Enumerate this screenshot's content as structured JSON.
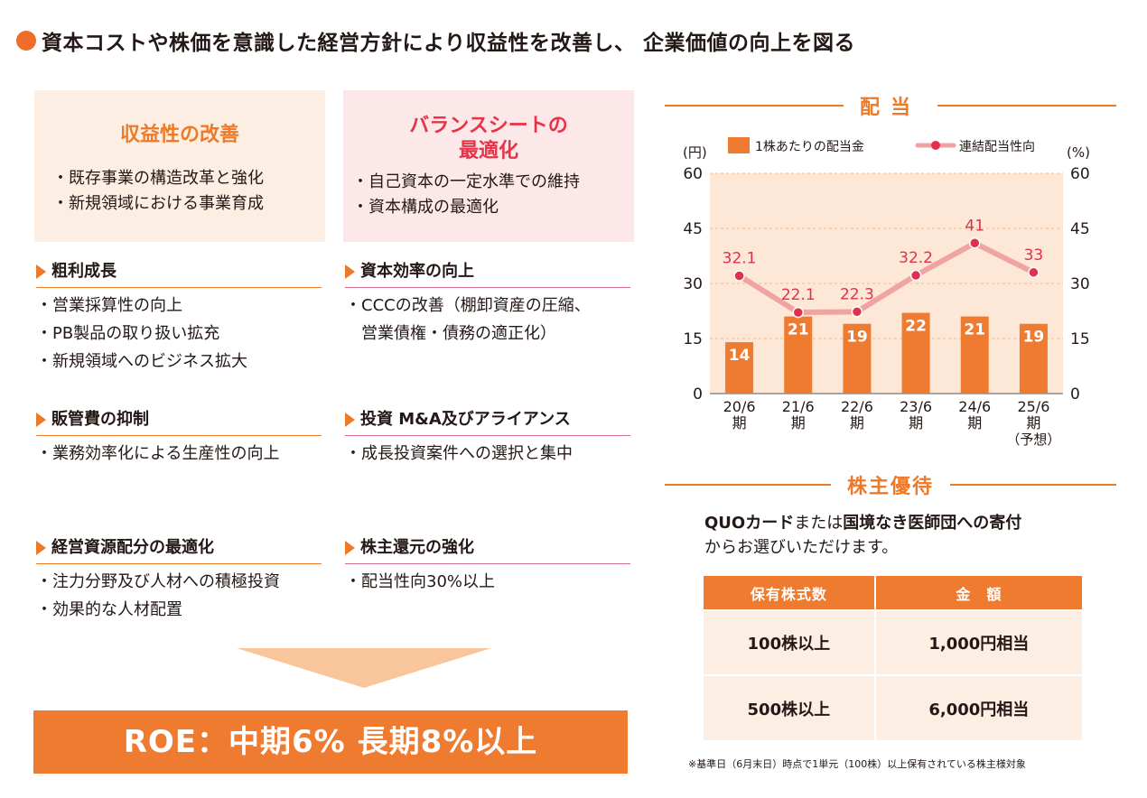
{
  "title": "資本コストや株価を意識した経営方針により収益性を改善し、 企業価値の向上を図る",
  "left_box": {
    "heading": "収益性の改善",
    "items": [
      "・既存事業の構造改革と強化",
      "・新規領域における事業育成"
    ]
  },
  "right_box": {
    "heading_line1": "バランスシートの",
    "heading_line2": "最適化",
    "items": [
      "・自己資本の一定水準での維持",
      "・資本構成の最適化"
    ]
  },
  "left_sections": [
    {
      "heading": "粗利成長",
      "items": [
        "・営業採算性の向上",
        "・PB製品の取り扱い拡充",
        "・新規領域へのビジネス拡大"
      ]
    },
    {
      "heading": "販管費の抑制",
      "items": [
        "・業務効率化による生産性の向上"
      ]
    },
    {
      "heading": "経営資源配分の最適化",
      "items": [
        "・注力分野及び人材への積極投資",
        "・効果的な人材配置"
      ]
    }
  ],
  "right_sections": [
    {
      "heading": "資本効率の向上",
      "items": [
        "・CCCの改善（棚卸資産の圧縮、",
        "　営業債権・債務の適正化）"
      ]
    },
    {
      "heading": "投資 M&A及びアライアンス",
      "items": [
        "・成長投資案件への選択と集中"
      ]
    },
    {
      "heading": "株主還元の強化",
      "items": [
        "・配当性向30%以上"
      ]
    }
  ],
  "roe": "ROE：中期6%  長期8%以上",
  "dividend_heading": "配当",
  "chart_data": {
    "type": "bar",
    "title": "配当",
    "categories": [
      {
        "line1": "20/6",
        "line2": "期",
        "line3": ""
      },
      {
        "line1": "21/6",
        "line2": "期",
        "line3": ""
      },
      {
        "line1": "22/6",
        "line2": "期",
        "line3": ""
      },
      {
        "line1": "23/6",
        "line2": "期",
        "line3": ""
      },
      {
        "line1": "24/6",
        "line2": "期",
        "line3": ""
      },
      {
        "line1": "25/6",
        "line2": "期",
        "line3": "（予想）"
      }
    ],
    "series": [
      {
        "name": "1株あたりの配当金",
        "type": "bar",
        "axis": "left",
        "values": [
          14,
          21,
          19,
          22,
          21,
          19
        ],
        "labels": [
          "14",
          "21",
          "19",
          "22",
          "21",
          "19"
        ],
        "color": "#ee7b30"
      },
      {
        "name": "連結配当性向",
        "type": "line",
        "axis": "right",
        "values": [
          32.1,
          22.1,
          22.3,
          32.2,
          41,
          33
        ],
        "labels": [
          "32.1",
          "22.1",
          "22.3",
          "32.2",
          "41",
          "33"
        ],
        "color": "#f0a3a3",
        "marker_color": "#e0304d"
      }
    ],
    "y_left": {
      "label": "(円)",
      "min": 0,
      "max": 60,
      "ticks": [
        "0",
        "15",
        "30",
        "45",
        "60"
      ]
    },
    "y_right": {
      "label": "(%)",
      "min": 0,
      "max": 60,
      "ticks": [
        "0",
        "15",
        "30",
        "45",
        "60"
      ]
    },
    "grid": true,
    "legend_position": "top",
    "background_color": "#fde7d6"
  },
  "yutai_heading": "株主優待",
  "yutai_text": {
    "part1": "QUOカード",
    "part2": "または",
    "part3": "国境なき医師団への寄付",
    "line2": "からお選びいただけます。"
  },
  "yutai_table": {
    "headers": [
      "保有株式数",
      "金　額"
    ],
    "rows": [
      [
        "100株以上",
        "1,000円相当"
      ],
      [
        "500株以上",
        "6,000円相当"
      ]
    ]
  },
  "footnote": "※基準日（6月末日）時点で1単元（100株）以上保有されている株主様対象",
  "colors": {
    "orange": "#ee7b30",
    "pink": "#e6334a"
  }
}
